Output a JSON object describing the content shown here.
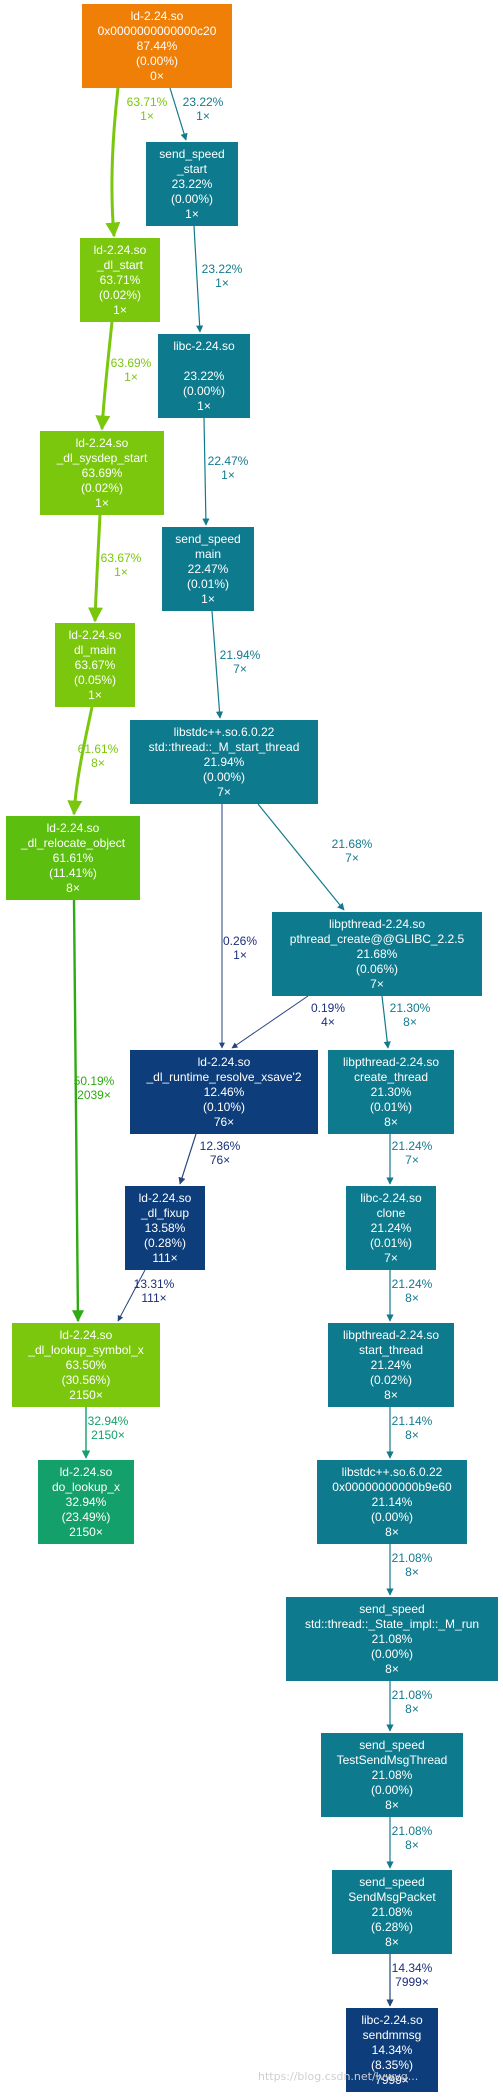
{
  "colors": {
    "orange": "#f07f08",
    "lime": "#7ac70e",
    "green": "#5cbe0e",
    "green_edge": "#2eaa12",
    "teal": "#0e7a8d",
    "teal_edge": "#137a8c",
    "blue": "#0d3d7a",
    "blue_edge": "#24457d",
    "emerald": "#13a06a",
    "mid_edge": "#2a6a8a"
  },
  "nodes": [
    {
      "id": "ld_top",
      "lines": [
        "ld-2.24.so",
        "0x0000000000000c20",
        "87.44%",
        "(0.00%)",
        "0×"
      ]
    },
    {
      "id": "send_speed_start",
      "lines": [
        "send_speed",
        "_start",
        "23.22%",
        "(0.00%)",
        "1×"
      ]
    },
    {
      "id": "ld_dl_start",
      "lines": [
        "ld-2.24.so",
        "_dl_start",
        "63.71%",
        "(0.02%)",
        "1×"
      ]
    },
    {
      "id": "libc_unk",
      "lines": [
        "libc-2.24.so",
        "",
        "23.22%",
        "(0.00%)",
        "1×"
      ]
    },
    {
      "id": "ld_dl_sysdep_start",
      "lines": [
        "ld-2.24.so",
        "_dl_sysdep_start",
        "63.69%",
        "(0.02%)",
        "1×"
      ]
    },
    {
      "id": "send_speed_main",
      "lines": [
        "send_speed",
        "main",
        "22.47%",
        "(0.01%)",
        "1×"
      ]
    },
    {
      "id": "ld_dl_main",
      "lines": [
        "ld-2.24.so",
        "dl_main",
        "63.67%",
        "(0.05%)",
        "1×"
      ]
    },
    {
      "id": "stdcxx_thread_start",
      "lines": [
        "libstdc++.so.6.0.22",
        "std::thread::_M_start_thread",
        "21.94%",
        "(0.00%)",
        "7×"
      ]
    },
    {
      "id": "ld_dl_relocate_object",
      "lines": [
        "ld-2.24.so",
        "_dl_relocate_object",
        "61.61%",
        "(11.41%)",
        "8×"
      ]
    },
    {
      "id": "pthread_create",
      "lines": [
        "libpthread-2.24.so",
        "pthread_create@@GLIBC_2.2.5",
        "21.68%",
        "(0.06%)",
        "7×"
      ]
    },
    {
      "id": "ld_runtime_resolve",
      "lines": [
        "ld-2.24.so",
        "_dl_runtime_resolve_xsave'2",
        "12.46%",
        "(0.10%)",
        "76×"
      ]
    },
    {
      "id": "pthread_create_thread",
      "lines": [
        "libpthread-2.24.so",
        "create_thread",
        "21.30%",
        "(0.01%)",
        "8×"
      ]
    },
    {
      "id": "ld_dl_fixup",
      "lines": [
        "ld-2.24.so",
        "_dl_fixup",
        "13.58%",
        "(0.28%)",
        "111×"
      ]
    },
    {
      "id": "libc_clone",
      "lines": [
        "libc-2.24.so",
        "clone",
        "21.24%",
        "(0.01%)",
        "7×"
      ]
    },
    {
      "id": "ld_dl_lookup_symbol",
      "lines": [
        "ld-2.24.so",
        "_dl_lookup_symbol_x",
        "63.50%",
        "(30.56%)",
        "2150×"
      ]
    },
    {
      "id": "pthread_start_thread",
      "lines": [
        "libpthread-2.24.so",
        "start_thread",
        "21.24%",
        "(0.02%)",
        "8×"
      ]
    },
    {
      "id": "ld_do_lookup",
      "lines": [
        "ld-2.24.so",
        "do_lookup_x",
        "32.94%",
        "(23.49%)",
        "2150×"
      ]
    },
    {
      "id": "stdcxx_b9e60",
      "lines": [
        "libstdc++.so.6.0.22",
        "0x00000000000b9e60",
        "21.14%",
        "(0.00%)",
        "8×"
      ]
    },
    {
      "id": "send_speed_state_run",
      "lines": [
        "send_speed",
        "std::thread::_State_impl::_M_run",
        "21.08%",
        "(0.00%)",
        "8×"
      ]
    },
    {
      "id": "send_speed_thread",
      "lines": [
        "send_speed",
        "TestSendMsgThread",
        "21.08%",
        "(0.00%)",
        "8×"
      ]
    },
    {
      "id": "send_speed_packet",
      "lines": [
        "send_speed",
        "SendMsgPacket",
        "21.08%",
        "(6.28%)",
        "8×"
      ]
    },
    {
      "id": "libc_sendmmsg",
      "lines": [
        "libc-2.24.so",
        "sendmmsg",
        "14.34%",
        "(8.35%)",
        "7999×"
      ]
    }
  ],
  "edges": [
    {
      "id": "e1",
      "lines": [
        "63.71%",
        "1×"
      ]
    },
    {
      "id": "e2",
      "lines": [
        "23.22%",
        "1×"
      ]
    },
    {
      "id": "e3",
      "lines": [
        "23.22%",
        "1×"
      ]
    },
    {
      "id": "e4",
      "lines": [
        "63.69%",
        "1×"
      ]
    },
    {
      "id": "e5",
      "lines": [
        "22.47%",
        "1×"
      ]
    },
    {
      "id": "e6",
      "lines": [
        "63.67%",
        "1×"
      ]
    },
    {
      "id": "e7",
      "lines": [
        "21.94%",
        "7×"
      ]
    },
    {
      "id": "e8",
      "lines": [
        "61.61%",
        "8×"
      ]
    },
    {
      "id": "e9",
      "lines": [
        "21.68%",
        "7×"
      ]
    },
    {
      "id": "e10",
      "lines": [
        "0.26%",
        "1×"
      ]
    },
    {
      "id": "e11",
      "lines": [
        "0.19%",
        "4×"
      ]
    },
    {
      "id": "e12",
      "lines": [
        "21.30%",
        "8×"
      ]
    },
    {
      "id": "e13",
      "lines": [
        "12.36%",
        "76×"
      ]
    },
    {
      "id": "e14",
      "lines": [
        "21.24%",
        "7×"
      ]
    },
    {
      "id": "e15",
      "lines": [
        "50.19%",
        "2039×"
      ]
    },
    {
      "id": "e16",
      "lines": [
        "13.31%",
        "111×"
      ]
    },
    {
      "id": "e17",
      "lines": [
        "21.24%",
        "8×"
      ]
    },
    {
      "id": "e18",
      "lines": [
        "32.94%",
        "2150×"
      ]
    },
    {
      "id": "e19",
      "lines": [
        "21.14%",
        "8×"
      ]
    },
    {
      "id": "e20",
      "lines": [
        "21.08%",
        "8×"
      ]
    },
    {
      "id": "e21",
      "lines": [
        "21.08%",
        "8×"
      ]
    },
    {
      "id": "e22",
      "lines": [
        "21.08%",
        "8×"
      ]
    },
    {
      "id": "e23",
      "lines": [
        "14.34%",
        "7999×"
      ]
    }
  ],
  "watermark": "https://blog.csdn.net/lvwyg..."
}
